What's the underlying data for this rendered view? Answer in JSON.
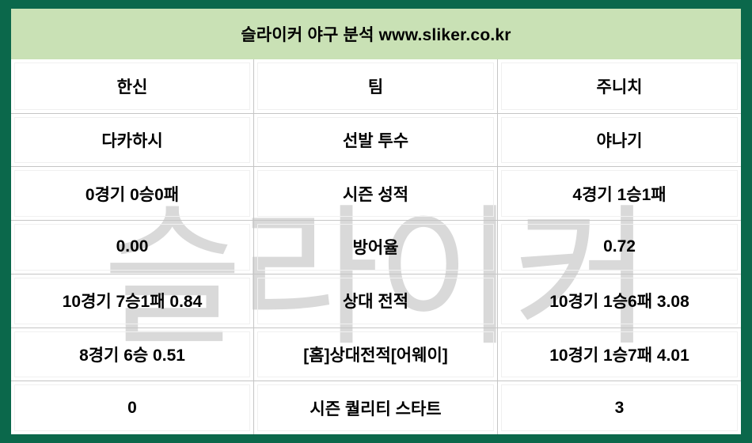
{
  "header": {
    "title": "슬라이커 야구 분석 www.sliker.co.kr"
  },
  "watermark": "슬라이커",
  "table": {
    "rows": [
      {
        "left": "한신",
        "label": "팀",
        "right": "주니치"
      },
      {
        "left": "다카하시",
        "label": "선발 투수",
        "right": "야나기"
      },
      {
        "left": "0경기 0승0패",
        "label": "시즌 성적",
        "right": "4경기 1승1패"
      },
      {
        "left": "0.00",
        "label": "방어율",
        "right": "0.72"
      },
      {
        "left": "10경기 7승1패 0.84",
        "label": "상대 전적",
        "right": "10경기 1승6패 3.08"
      },
      {
        "left": "8경기 6승 0.51",
        "label": "[홈]상대전적[어웨이]",
        "right": "10경기 1승7패 4.01"
      },
      {
        "left": "0",
        "label": "시즌 퀄리티 스타트",
        "right": "3"
      }
    ]
  },
  "colors": {
    "frame_bg": "#0b684b",
    "header_bg": "#c9e1b5",
    "board_bg": "#ffffff",
    "grid_line": "#c5c5c5",
    "faint_line": "#f0f0f0",
    "text_color": "#000000",
    "watermark_color": "#d9d9d9"
  }
}
